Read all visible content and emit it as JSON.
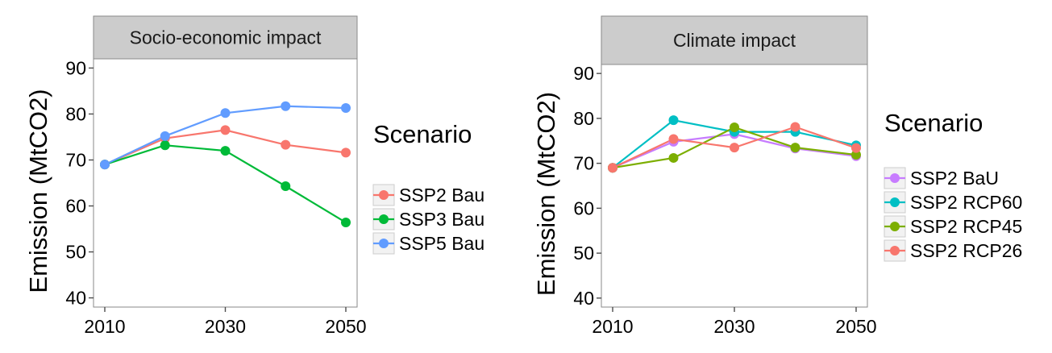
{
  "chart_data": [
    {
      "type": "line",
      "title": "Socio-economic impact",
      "xlabel": "",
      "ylabel": "Emission (MtCO2)",
      "x": [
        2010,
        2020,
        2030,
        2040,
        2050
      ],
      "xticks": [
        2010,
        2030,
        2050
      ],
      "xlim": [
        2010,
        2050
      ],
      "yticks": [
        40,
        50,
        60,
        70,
        80,
        90
      ],
      "ylim": [
        38,
        92
      ],
      "grid": false,
      "legend_title": "Scenario",
      "legend_position": "right",
      "series": [
        {
          "name": "SSP2 Bau",
          "color": "#F8766D",
          "values": [
            69,
            74.7,
            76.5,
            73.3,
            71.6
          ]
        },
        {
          "name": "SSP3 Bau",
          "color": "#00BA38",
          "values": [
            69,
            73.2,
            72.0,
            64.3,
            56.4
          ]
        },
        {
          "name": "SSP5 Bau",
          "color": "#619CFF",
          "values": [
            69,
            75.2,
            80.2,
            81.7,
            81.3
          ]
        }
      ]
    },
    {
      "type": "line",
      "title": "Climate impact",
      "xlabel": "",
      "ylabel": "Emission (MtCO2)",
      "x": [
        2010,
        2020,
        2030,
        2040,
        2050
      ],
      "xticks": [
        2010,
        2030,
        2050
      ],
      "xlim": [
        2010,
        2050
      ],
      "yticks": [
        40,
        50,
        60,
        70,
        80,
        90
      ],
      "ylim": [
        38,
        92
      ],
      "grid": false,
      "legend_title": "Scenario",
      "legend_position": "right",
      "series": [
        {
          "name": "SSP2 BaU",
          "color": "#C77CFF",
          "values": [
            69,
            74.8,
            76.5,
            73.3,
            71.6
          ]
        },
        {
          "name": "SSP2 RCP60",
          "color": "#00BFC4",
          "values": [
            69,
            79.6,
            77.0,
            77.0,
            74.0
          ]
        },
        {
          "name": "SSP2 RCP45",
          "color": "#7CAE00",
          "values": [
            69,
            71.2,
            78.0,
            73.5,
            71.9
          ]
        },
        {
          "name": "SSP2 RCP26",
          "color": "#F8766D",
          "values": [
            69,
            75.4,
            73.5,
            78.1,
            73.4
          ]
        }
      ]
    }
  ]
}
